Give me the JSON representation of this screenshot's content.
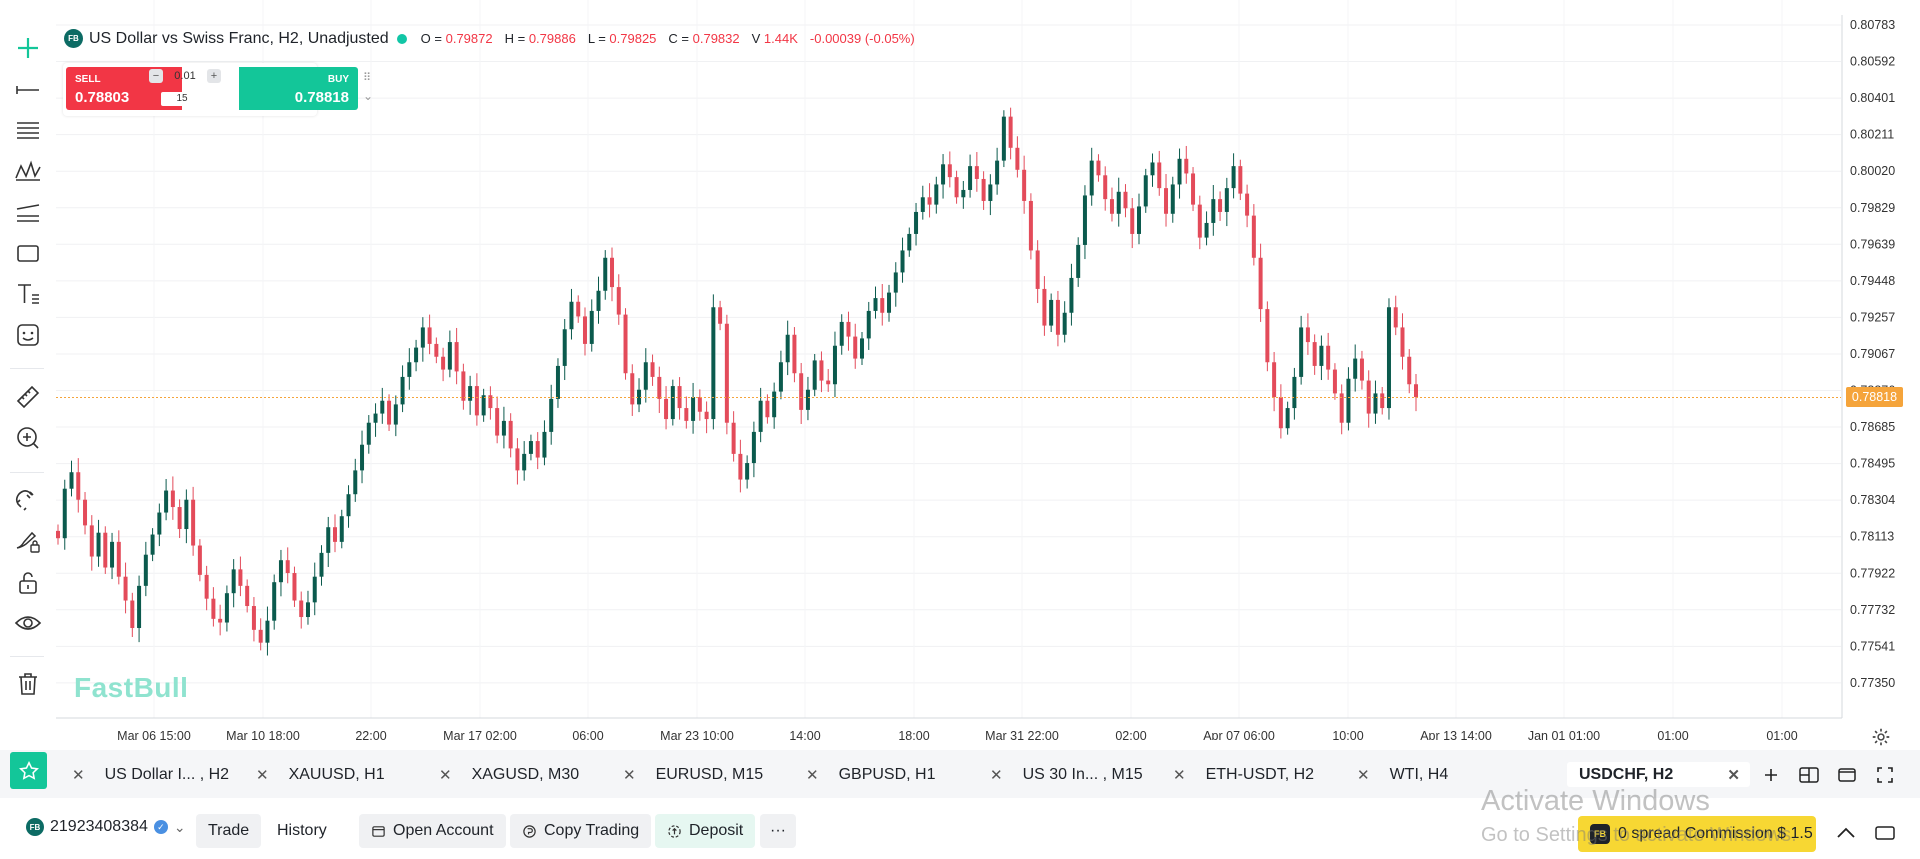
{
  "chart_header": {
    "logo": "FB",
    "title": "US Dollar vs Swiss Franc, H2, Unadjusted",
    "o_label": "O =",
    "o_value": "0.79872",
    "h_label": "H =",
    "h_value": "0.79886",
    "l_label": "L =",
    "l_value": "0.79825",
    "c_label": "C =",
    "c_value": "0.79832",
    "v_label": "V",
    "v_value": "1.44K",
    "change": "-0.00039 (-0.05%)"
  },
  "trade_widget": {
    "sell_label": "SELL",
    "sell_price": "0.78803",
    "buy_label": "BUY",
    "buy_price": "0.78818",
    "lot_size": "0.01",
    "minus": "−",
    "plus": "+",
    "spread": "15",
    "drag_glyph": "⠿",
    "chevron": "⌄"
  },
  "watermark": "FastBull",
  "current_price_badge": "0.78818",
  "price_axis": {
    "labels": [
      "0.80783",
      "0.80592",
      "0.80401",
      "0.80211",
      "0.80020",
      "0.79829",
      "0.79639",
      "0.79448",
      "0.79257",
      "0.79067",
      "0.78876",
      "0.78685",
      "0.78495",
      "0.78304",
      "0.78113",
      "0.77922",
      "0.77732",
      "0.77541",
      "0.77350"
    ]
  },
  "time_axis": {
    "labels": [
      "Mar 06 15:00",
      "Mar 10 18:00",
      "22:00",
      "Mar 17 02:00",
      "06:00",
      "Mar 23 10:00",
      "14:00",
      "18:00",
      "Mar 31 22:00",
      "02:00",
      "Apr 07 06:00",
      "10:00",
      "Apr 13 14:00",
      "Jan 01 01:00",
      "01:00",
      "01:00"
    ]
  },
  "chart_data": {
    "type": "candlestick",
    "symbol": "USDCHF",
    "timeframe": "H2",
    "ylim": [
      0.7726,
      0.8085
    ],
    "current_price": 0.78818,
    "up_color": "#0b5a4d",
    "down_color": "#e34b5a",
    "closes": [
      0.7805,
      0.7832,
      0.7841,
      0.7826,
      0.7812,
      0.7795,
      0.7808,
      0.7789,
      0.7803,
      0.7784,
      0.7771,
      0.7756,
      0.7779,
      0.7796,
      0.7807,
      0.7819,
      0.7831,
      0.7822,
      0.781,
      0.7826,
      0.7801,
      0.7785,
      0.7772,
      0.7761,
      0.7759,
      0.7775,
      0.7788,
      0.7779,
      0.7768,
      0.7755,
      0.7748,
      0.776,
      0.7781,
      0.7793,
      0.7786,
      0.7771,
      0.7762,
      0.777,
      0.7784,
      0.7797,
      0.7811,
      0.7803,
      0.7817,
      0.7829,
      0.7842,
      0.7856,
      0.7868,
      0.7873,
      0.788,
      0.7867,
      0.7878,
      0.7893,
      0.7901,
      0.7909,
      0.792,
      0.7911,
      0.7904,
      0.7897,
      0.7912,
      0.7896,
      0.788,
      0.7888,
      0.7872,
      0.7883,
      0.7876,
      0.7861,
      0.7869,
      0.7854,
      0.7842,
      0.7851,
      0.7858,
      0.7849,
      0.7863,
      0.7881,
      0.7899,
      0.7919,
      0.7934,
      0.7926,
      0.7911,
      0.7929,
      0.794,
      0.7958,
      0.7942,
      0.7927,
      0.7895,
      0.7878,
      0.7886,
      0.7901,
      0.7893,
      0.7881,
      0.787,
      0.7888,
      0.7876,
      0.7869,
      0.7882,
      0.7874,
      0.787,
      0.7931,
      0.7922,
      0.7868,
      0.7851,
      0.7837,
      0.7846,
      0.7863,
      0.788,
      0.7871,
      0.7885,
      0.7901,
      0.7916,
      0.7895,
      0.7875,
      0.7886,
      0.7902,
      0.7891,
      0.7889,
      0.791,
      0.7923,
      0.7915,
      0.7903,
      0.7914,
      0.7929,
      0.7936,
      0.7928,
      0.7939,
      0.795,
      0.7962,
      0.7971,
      0.7983,
      0.7991,
      0.7987,
      0.7998,
      0.8009,
      0.8002,
      0.7991,
      0.7995,
      0.8008,
      0.8001,
      0.7989,
      0.7998,
      0.8011,
      0.8035,
      0.8018,
      0.8006,
      0.7989,
      0.7962,
      0.7941,
      0.7921,
      0.7935,
      0.7916,
      0.7928,
      0.7947,
      0.7965,
      0.7992,
      0.8011,
      0.8003,
      0.799,
      0.7982,
      0.7994,
      0.7985,
      0.7971,
      0.7986,
      0.8003,
      0.801,
      0.7996,
      0.7982,
      0.7998,
      0.8012,
      0.8004,
      0.7987,
      0.7969,
      0.7977,
      0.799,
      0.7983,
      0.7996,
      0.8008,
      0.7993,
      0.7981,
      0.7958,
      0.793,
      0.7901,
      0.7882,
      0.7865,
      0.7876,
      0.7893,
      0.792,
      0.7912,
      0.7899,
      0.791,
      0.7897,
      0.7884,
      0.7868,
      0.7892,
      0.7903,
      0.7891,
      0.7873,
      0.7884,
      0.7876,
      0.7931,
      0.792,
      0.7904,
      0.7889,
      0.7882
    ]
  },
  "tabs": [
    {
      "label": "US Dollar I... , H2"
    },
    {
      "label": "XAUUSD, H1"
    },
    {
      "label": "XAGUSD, M30"
    },
    {
      "label": "EURUSD, M15"
    },
    {
      "label": "GBPUSD, H1"
    },
    {
      "label": "US 30 In... , M15"
    },
    {
      "label": "ETH-USDT, H2"
    },
    {
      "label": "WTI, H4"
    },
    {
      "label": "USDCHF, H2"
    }
  ],
  "tab_close_glyph": "✕",
  "account": {
    "logo": "FB",
    "id": "21923408384",
    "verified_glyph": "✓",
    "dropdown_glyph": "⌄"
  },
  "bottom_bar": {
    "trade": "Trade",
    "history": "History",
    "open_account": "Open Account",
    "copy_trading": "Copy Trading",
    "deposit": "Deposit",
    "more": "···",
    "commission": "0 spread Commission $ 1.5",
    "commission_icon": "FB"
  },
  "os_overlay": {
    "title": "Activate Windows",
    "subtitle": "Go to Settings to activate Windows."
  },
  "icons": [
    "plus-icon",
    "horizontal-line-icon",
    "fib-lines-icon",
    "pattern-icon",
    "parallel-channel-icon",
    "rectangle-icon",
    "text-icon",
    "emoji-icon",
    "ruler-icon",
    "zoom-in-icon",
    "magnet-icon",
    "lock-brush-icon",
    "unlock-icon",
    "eye-icon",
    "trash-icon",
    "star-icon",
    "gear-icon",
    "add-tab-icon",
    "layout-icon",
    "window-icon",
    "fullscreen-icon",
    "chevron-up-icon"
  ],
  "colors": {
    "sell": "#f23645",
    "buy": "#13c699",
    "accent": "#13c699",
    "price_badge": "#f5a43b",
    "banner": "#f7d733"
  }
}
